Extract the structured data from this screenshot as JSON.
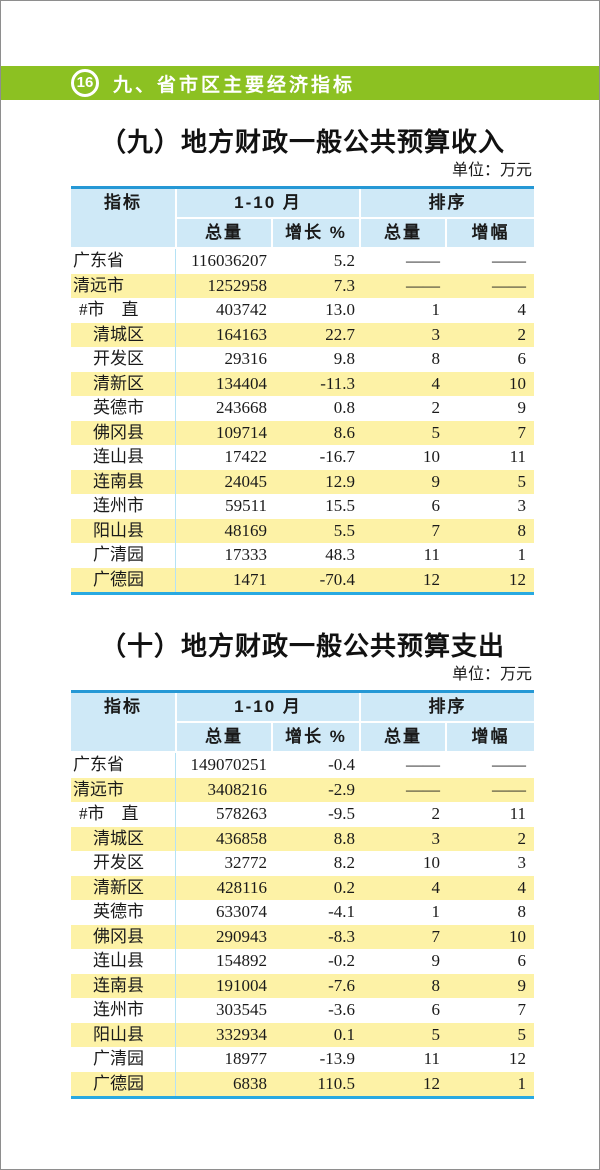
{
  "page_header": {
    "page_number": "16",
    "chapter_title": "九、省市区主要经济指标"
  },
  "colors": {
    "bar_green": "#8cc122",
    "table_border_blue_top": "#2598d5",
    "table_border_blue_bottom": "#29a9e1",
    "header_cell_blue": "#cfe9f7",
    "row_highlight_yellow": "#fdf2a6",
    "indicator_divider_blue": "#b5e2f5"
  },
  "tables": [
    {
      "title": "（九）地方财政一般公共预算收入",
      "unit": "单位：万元",
      "columns": {
        "indicator": "指标",
        "period_group": "1-10 月",
        "rank_group": "排序",
        "total": "总量",
        "growth": "增长 %",
        "rank_total": "总量",
        "rank_growth": "增幅"
      },
      "rows": [
        {
          "name": "广东省",
          "indent": "",
          "total": "116036207",
          "growth": "5.2",
          "rank_total": "——",
          "rank_growth": "——",
          "highlight": false
        },
        {
          "name": "清远市",
          "indent": "",
          "total": "1252958",
          "growth": "7.3",
          "rank_total": "——",
          "rank_growth": "——",
          "highlight": true
        },
        {
          "name": "#市　直",
          "indent": "hash",
          "total": "403742",
          "growth": "13.0",
          "rank_total": "1",
          "rank_growth": "4",
          "highlight": false
        },
        {
          "name": "清城区",
          "indent": "1",
          "total": "164163",
          "growth": "22.7",
          "rank_total": "3",
          "rank_growth": "2",
          "highlight": true
        },
        {
          "name": "开发区",
          "indent": "1",
          "total": "29316",
          "growth": "9.8",
          "rank_total": "8",
          "rank_growth": "6",
          "highlight": false
        },
        {
          "name": "清新区",
          "indent": "1",
          "total": "134404",
          "growth": "-11.3",
          "rank_total": "4",
          "rank_growth": "10",
          "highlight": true
        },
        {
          "name": "英德市",
          "indent": "1",
          "total": "243668",
          "growth": "0.8",
          "rank_total": "2",
          "rank_growth": "9",
          "highlight": false
        },
        {
          "name": "佛冈县",
          "indent": "1",
          "total": "109714",
          "growth": "8.6",
          "rank_total": "5",
          "rank_growth": "7",
          "highlight": true
        },
        {
          "name": "连山县",
          "indent": "1",
          "total": "17422",
          "growth": "-16.7",
          "rank_total": "10",
          "rank_growth": "11",
          "highlight": false
        },
        {
          "name": "连南县",
          "indent": "1",
          "total": "24045",
          "growth": "12.9",
          "rank_total": "9",
          "rank_growth": "5",
          "highlight": true
        },
        {
          "name": "连州市",
          "indent": "1",
          "total": "59511",
          "growth": "15.5",
          "rank_total": "6",
          "rank_growth": "3",
          "highlight": false
        },
        {
          "name": "阳山县",
          "indent": "1",
          "total": "48169",
          "growth": "5.5",
          "rank_total": "7",
          "rank_growth": "8",
          "highlight": true
        },
        {
          "name": "广清园",
          "indent": "1",
          "total": "17333",
          "growth": "48.3",
          "rank_total": "11",
          "rank_growth": "1",
          "highlight": false
        },
        {
          "name": "广德园",
          "indent": "1",
          "total": "1471",
          "growth": "-70.4",
          "rank_total": "12",
          "rank_growth": "12",
          "highlight": true
        }
      ]
    },
    {
      "title": "（十）地方财政一般公共预算支出",
      "unit": "单位：万元",
      "columns": {
        "indicator": "指标",
        "period_group": "1-10 月",
        "rank_group": "排序",
        "total": "总量",
        "growth": "增长 %",
        "rank_total": "总量",
        "rank_growth": "增幅"
      },
      "rows": [
        {
          "name": "广东省",
          "indent": "",
          "total": "149070251",
          "growth": "-0.4",
          "rank_total": "——",
          "rank_growth": "——",
          "highlight": false
        },
        {
          "name": "清远市",
          "indent": "",
          "total": "3408216",
          "growth": "-2.9",
          "rank_total": "——",
          "rank_growth": "——",
          "highlight": true
        },
        {
          "name": "#市　直",
          "indent": "hash",
          "total": "578263",
          "growth": "-9.5",
          "rank_total": "2",
          "rank_growth": "11",
          "highlight": false
        },
        {
          "name": "清城区",
          "indent": "1",
          "total": "436858",
          "growth": "8.8",
          "rank_total": "3",
          "rank_growth": "2",
          "highlight": true
        },
        {
          "name": "开发区",
          "indent": "1",
          "total": "32772",
          "growth": "8.2",
          "rank_total": "10",
          "rank_growth": "3",
          "highlight": false
        },
        {
          "name": "清新区",
          "indent": "1",
          "total": "428116",
          "growth": "0.2",
          "rank_total": "4",
          "rank_growth": "4",
          "highlight": true
        },
        {
          "name": "英德市",
          "indent": "1",
          "total": "633074",
          "growth": "-4.1",
          "rank_total": "1",
          "rank_growth": "8",
          "highlight": false
        },
        {
          "name": "佛冈县",
          "indent": "1",
          "total": "290943",
          "growth": "-8.3",
          "rank_total": "7",
          "rank_growth": "10",
          "highlight": true
        },
        {
          "name": "连山县",
          "indent": "1",
          "total": "154892",
          "growth": "-0.2",
          "rank_total": "9",
          "rank_growth": "6",
          "highlight": false
        },
        {
          "name": "连南县",
          "indent": "1",
          "total": "191004",
          "growth": "-7.6",
          "rank_total": "8",
          "rank_growth": "9",
          "highlight": true
        },
        {
          "name": "连州市",
          "indent": "1",
          "total": "303545",
          "growth": "-3.6",
          "rank_total": "6",
          "rank_growth": "7",
          "highlight": false
        },
        {
          "name": "阳山县",
          "indent": "1",
          "total": "332934",
          "growth": "0.1",
          "rank_total": "5",
          "rank_growth": "5",
          "highlight": true
        },
        {
          "name": "广清园",
          "indent": "1",
          "total": "18977",
          "growth": "-13.9",
          "rank_total": "11",
          "rank_growth": "12",
          "highlight": false
        },
        {
          "name": "广德园",
          "indent": "1",
          "total": "6838",
          "growth": "110.5",
          "rank_total": "12",
          "rank_growth": "1",
          "highlight": true
        }
      ]
    }
  ]
}
